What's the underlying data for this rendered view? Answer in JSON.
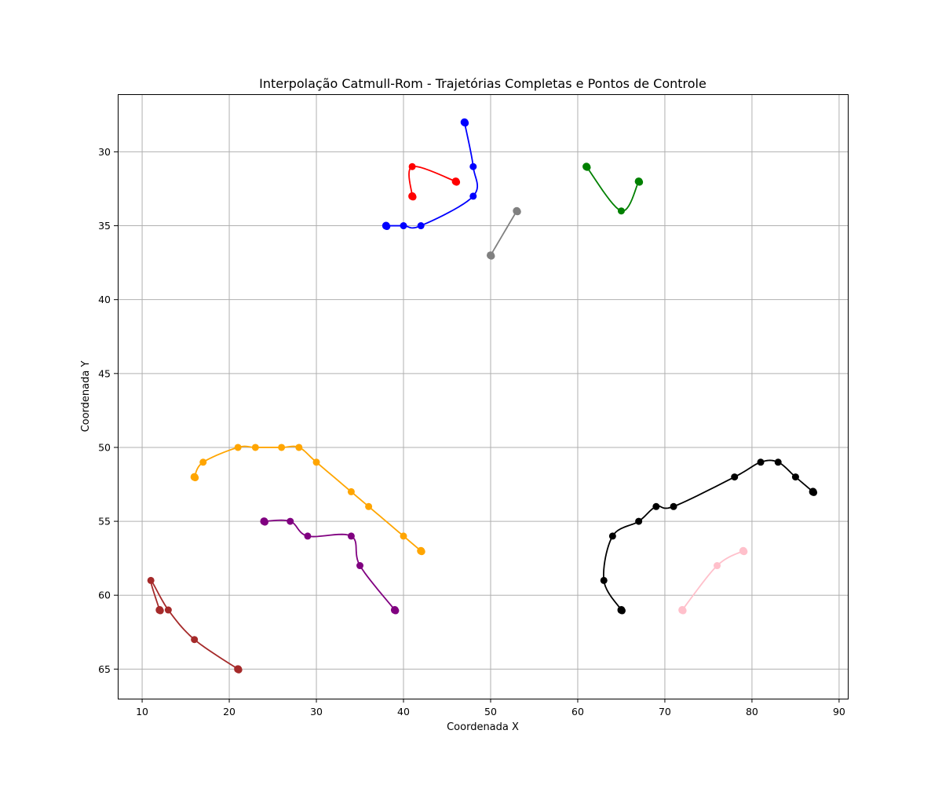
{
  "chart_data": {
    "type": "line",
    "title": "Interpolação Catmull-Rom - Trajetórias Completas e Pontos de Controle",
    "xlabel": "Coordenada X",
    "ylabel": "Coordenada Y",
    "xlim": [
      7.2,
      91.0
    ],
    "ylim": [
      67.0,
      26.1
    ],
    "y_inverted": true,
    "grid": true,
    "legend": "none",
    "xticks": [
      10,
      20,
      30,
      40,
      50,
      60,
      70,
      80,
      90
    ],
    "yticks": [
      30,
      35,
      40,
      45,
      50,
      55,
      60,
      65
    ],
    "series": [
      {
        "color": "#ff0000",
        "points": [
          [
            46,
            32
          ],
          [
            41,
            31
          ],
          [
            41,
            33
          ]
        ]
      },
      {
        "color": "#0000ff",
        "points": [
          [
            47,
            28
          ],
          [
            48,
            31
          ],
          [
            48,
            33
          ],
          [
            42,
            35
          ],
          [
            40,
            35
          ],
          [
            38,
            35
          ]
        ]
      },
      {
        "color": "#808080",
        "points": [
          [
            53,
            34
          ],
          [
            50,
            37
          ]
        ]
      },
      {
        "color": "#008000",
        "points": [
          [
            61,
            31
          ],
          [
            65,
            34
          ],
          [
            67,
            32
          ]
        ]
      },
      {
        "color": "#ffa500",
        "points": [
          [
            16,
            52
          ],
          [
            17,
            51
          ],
          [
            21,
            50
          ],
          [
            23,
            50
          ],
          [
            26,
            50
          ],
          [
            28,
            50
          ],
          [
            30,
            51
          ],
          [
            34,
            53
          ],
          [
            36,
            54
          ],
          [
            40,
            56
          ],
          [
            42,
            57
          ]
        ]
      },
      {
        "color": "#800080",
        "points": [
          [
            24,
            55
          ],
          [
            27,
            55
          ],
          [
            29,
            56
          ],
          [
            34,
            56
          ],
          [
            35,
            58
          ],
          [
            39,
            61
          ]
        ]
      },
      {
        "color": "#a52a2a",
        "points": [
          [
            12,
            61
          ],
          [
            11,
            59
          ],
          [
            13,
            61
          ],
          [
            16,
            63
          ],
          [
            21,
            65
          ]
        ]
      },
      {
        "color": "#000000",
        "points": [
          [
            65,
            61
          ],
          [
            63,
            59
          ],
          [
            64,
            56
          ],
          [
            67,
            55
          ],
          [
            69,
            54
          ],
          [
            71,
            54
          ],
          [
            78,
            52
          ],
          [
            81,
            51
          ],
          [
            83,
            51
          ],
          [
            85,
            52
          ],
          [
            87,
            53
          ]
        ]
      },
      {
        "color": "#ffc0cb",
        "points": [
          [
            72,
            61
          ],
          [
            76,
            58
          ],
          [
            79,
            57
          ]
        ]
      }
    ]
  }
}
